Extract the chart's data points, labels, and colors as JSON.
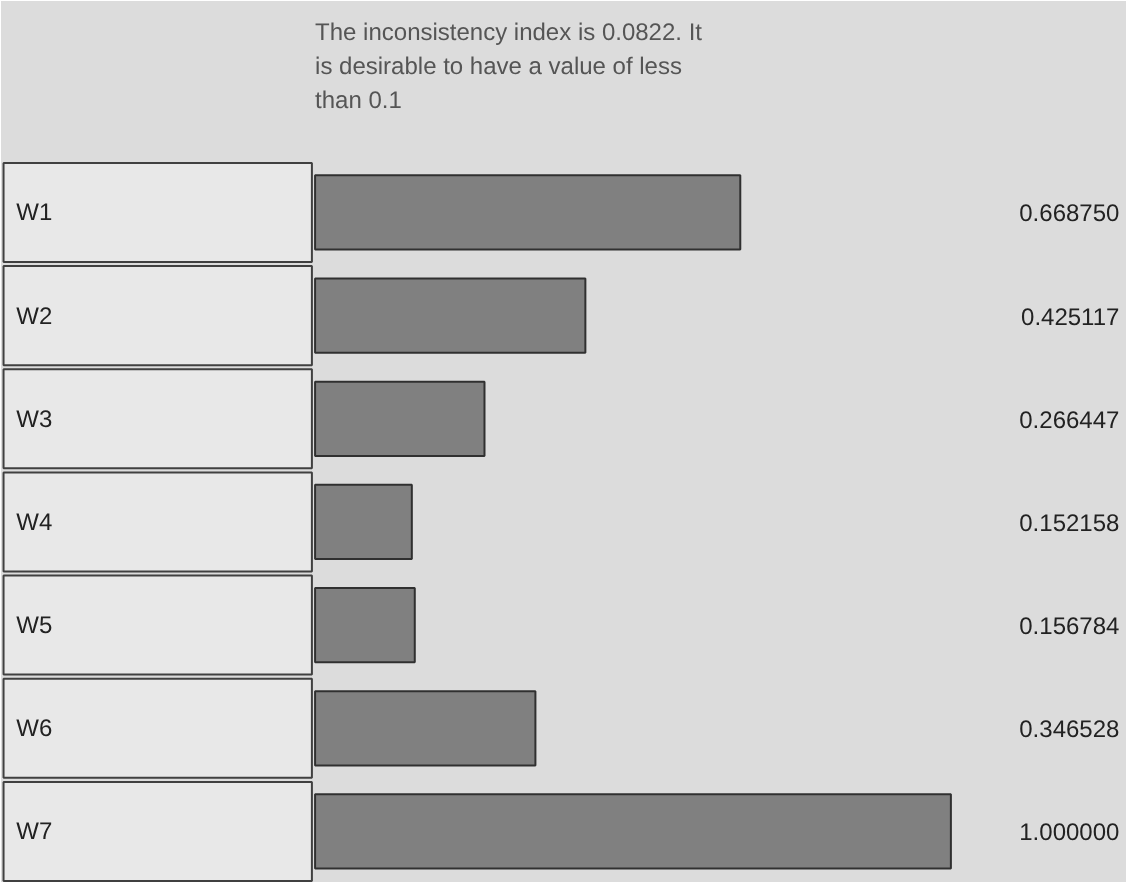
{
  "chart_data": {
    "type": "bar",
    "orientation": "horizontal",
    "tick_labels": false,
    "title": "The inconsistency index is 0.0822.  It is desirable to have a value of less than 0.1",
    "categories": [
      "W1",
      "W2",
      "W3",
      "W4",
      "W5",
      "W6",
      "W7"
    ],
    "values": [
      0.66875,
      0.425117,
      0.266447,
      0.152158,
      0.156784,
      0.346528,
      1.0
    ],
    "value_labels": [
      "0.668750",
      "0.425117",
      "0.266447",
      "0.152158",
      "0.156784",
      "0.346528",
      "1.000000"
    ],
    "color": "#808080",
    "grid": false
  }
}
